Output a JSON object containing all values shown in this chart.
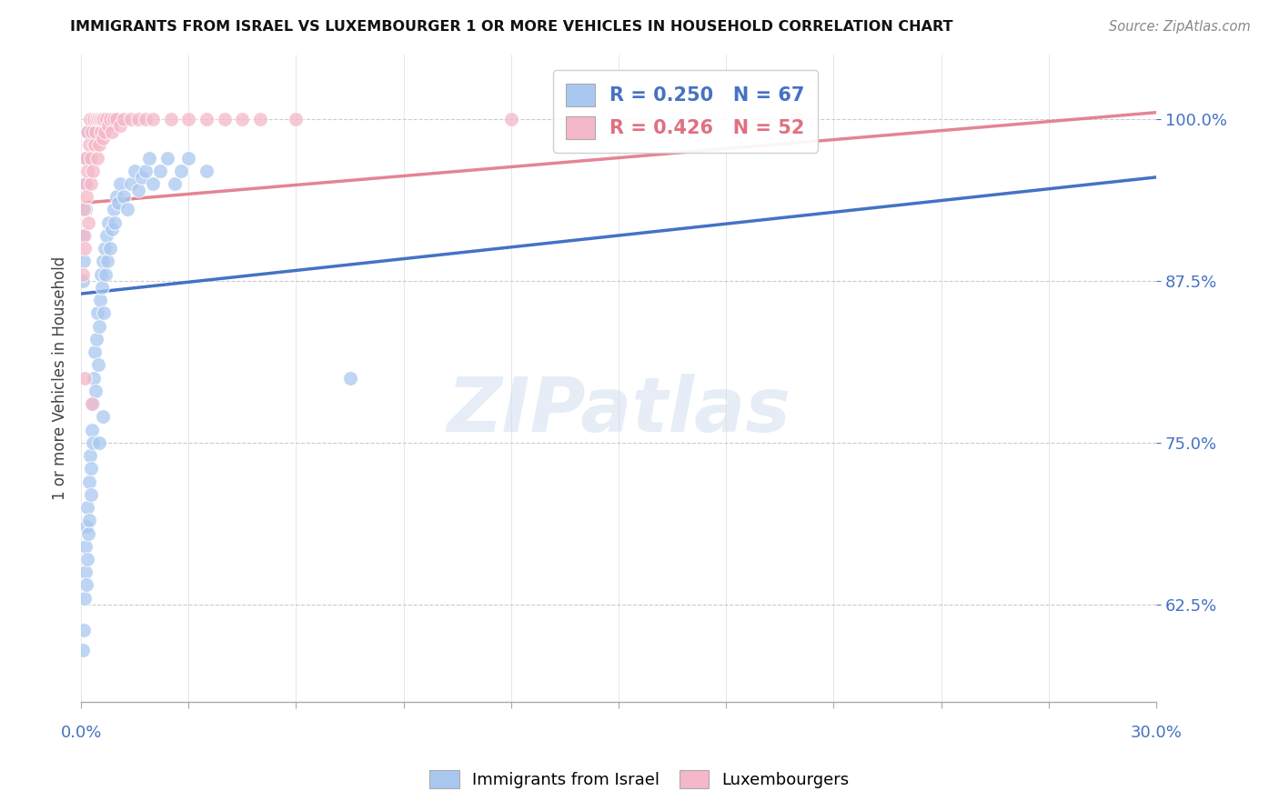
{
  "title": "IMMIGRANTS FROM ISRAEL VS LUXEMBOURGER 1 OR MORE VEHICLES IN HOUSEHOLD CORRELATION CHART",
  "source": "Source: ZipAtlas.com",
  "ylabel": "1 or more Vehicles in Household",
  "legend_blue_label": "Immigrants from Israel",
  "legend_pink_label": "Luxembourgers",
  "R_blue": 0.25,
  "N_blue": 67,
  "R_pink": 0.426,
  "N_pink": 52,
  "blue_color": "#a8c8f0",
  "pink_color": "#f5b8c8",
  "blue_line_color": "#4472c4",
  "pink_line_color": "#e07080",
  "xlim": [
    0.0,
    30.0
  ],
  "ylim": [
    55.0,
    105.0
  ],
  "ytick_vals": [
    62.5,
    75.0,
    87.5,
    100.0
  ],
  "blue_trend_x": [
    0.0,
    30.0
  ],
  "blue_trend_y": [
    86.5,
    95.5
  ],
  "pink_trend_x": [
    0.0,
    30.0
  ],
  "pink_trend_y": [
    93.5,
    100.5
  ],
  "blue_scatter_x": [
    0.05,
    0.08,
    0.1,
    0.12,
    0.13,
    0.14,
    0.15,
    0.17,
    0.18,
    0.2,
    0.22,
    0.23,
    0.25,
    0.27,
    0.28,
    0.3,
    0.32,
    0.33,
    0.35,
    0.38,
    0.4,
    0.42,
    0.45,
    0.48,
    0.5,
    0.52,
    0.55,
    0.58,
    0.6,
    0.63,
    0.65,
    0.68,
    0.7,
    0.73,
    0.75,
    0.8,
    0.85,
    0.9,
    0.95,
    1.0,
    1.05,
    1.1,
    1.2,
    1.3,
    1.4,
    1.5,
    1.6,
    1.7,
    1.8,
    1.9,
    2.0,
    2.2,
    2.4,
    2.6,
    2.8,
    3.0,
    3.5,
    0.05,
    0.07,
    0.1,
    0.12,
    0.15,
    0.18,
    0.2,
    0.5,
    0.6,
    7.5
  ],
  "blue_scatter_y": [
    59.0,
    60.5,
    63.0,
    65.0,
    67.0,
    68.5,
    64.0,
    70.0,
    66.0,
    68.0,
    72.0,
    69.0,
    74.0,
    71.0,
    73.0,
    76.0,
    75.0,
    78.0,
    80.0,
    82.0,
    79.0,
    83.0,
    85.0,
    81.0,
    84.0,
    86.0,
    88.0,
    87.0,
    89.0,
    85.0,
    90.0,
    88.0,
    91.0,
    89.0,
    92.0,
    90.0,
    91.5,
    93.0,
    92.0,
    94.0,
    93.5,
    95.0,
    94.0,
    93.0,
    95.0,
    96.0,
    94.5,
    95.5,
    96.0,
    97.0,
    95.0,
    96.0,
    97.0,
    95.0,
    96.0,
    97.0,
    96.0,
    87.5,
    89.0,
    91.0,
    93.0,
    95.0,
    97.0,
    99.0,
    75.0,
    77.0,
    80.0
  ],
  "pink_scatter_x": [
    0.05,
    0.07,
    0.08,
    0.1,
    0.12,
    0.13,
    0.15,
    0.17,
    0.18,
    0.2,
    0.22,
    0.25,
    0.27,
    0.28,
    0.3,
    0.32,
    0.35,
    0.37,
    0.4,
    0.42,
    0.45,
    0.48,
    0.5,
    0.52,
    0.55,
    0.58,
    0.6,
    0.63,
    0.65,
    0.7,
    0.75,
    0.8,
    0.85,
    0.9,
    1.0,
    1.1,
    1.2,
    1.4,
    1.6,
    1.8,
    2.0,
    2.5,
    3.0,
    3.5,
    4.0,
    4.5,
    5.0,
    6.0,
    12.0,
    20.0,
    0.1,
    0.3
  ],
  "pink_scatter_y": [
    88.0,
    91.0,
    93.0,
    90.0,
    95.0,
    97.0,
    94.0,
    96.0,
    99.0,
    92.0,
    98.0,
    100.0,
    95.0,
    97.0,
    99.0,
    96.0,
    100.0,
    98.0,
    99.0,
    100.0,
    97.0,
    100.0,
    98.0,
    100.0,
    99.0,
    100.0,
    98.5,
    100.0,
    99.0,
    100.0,
    99.5,
    100.0,
    99.0,
    100.0,
    100.0,
    99.5,
    100.0,
    100.0,
    100.0,
    100.0,
    100.0,
    100.0,
    100.0,
    100.0,
    100.0,
    100.0,
    100.0,
    100.0,
    100.0,
    100.0,
    80.0,
    78.0
  ],
  "watermark_text": "ZIPatlas",
  "background_color": "#ffffff"
}
